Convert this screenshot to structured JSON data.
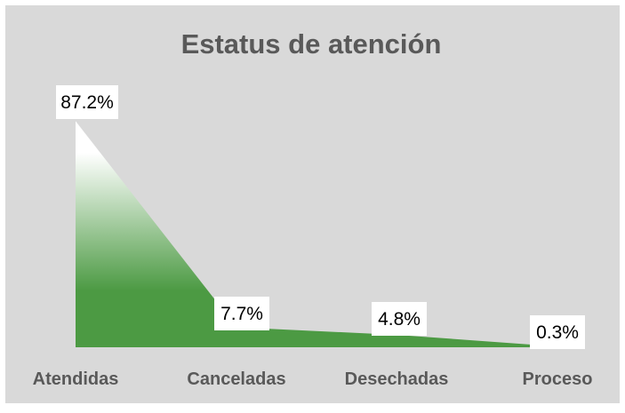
{
  "chart_data": {
    "type": "area",
    "title": "Estatus de atención",
    "categories": [
      "Atendidas",
      "Canceladas",
      "Desechadas",
      "Proceso"
    ],
    "values": [
      87.2,
      7.7,
      4.8,
      0.3
    ],
    "value_labels": [
      "87.2%",
      "7.7%",
      "4.8%",
      "0.3%"
    ],
    "unit": "%",
    "ylim": [
      0,
      100
    ],
    "grid": false,
    "legend": "none",
    "colors": {
      "background": "#d9d9d9",
      "area_fill": "#4c9a43",
      "area_fill_top": "#ffffff",
      "title": "#595959",
      "category_label": "#595959",
      "label_box": "#ffffff"
    }
  }
}
